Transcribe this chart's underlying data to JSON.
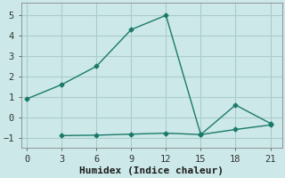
{
  "xlabel": "Humidex (Indice chaleur)",
  "background_color": "#cce8e8",
  "grid_color": "#aacccc",
  "line_color": "#1a7a6a",
  "line1_x": [
    0,
    3,
    6,
    9,
    12,
    15,
    18,
    21
  ],
  "line1_y": [
    0.9,
    1.6,
    2.5,
    4.3,
    5.0,
    -0.85,
    0.6,
    -0.3
  ],
  "line2_x": [
    3,
    6,
    9,
    12,
    15,
    18,
    21
  ],
  "line2_y": [
    -0.9,
    -0.88,
    -0.83,
    -0.78,
    -0.85,
    -0.6,
    -0.38
  ],
  "xlim": [
    -0.5,
    22
  ],
  "ylim": [
    -1.5,
    5.6
  ],
  "xticks": [
    0,
    3,
    6,
    9,
    12,
    15,
    18,
    21
  ],
  "yticks": [
    -1,
    0,
    1,
    2,
    3,
    4,
    5
  ],
  "font_family": "monospace",
  "tick_fontsize": 7.5,
  "xlabel_fontsize": 8
}
